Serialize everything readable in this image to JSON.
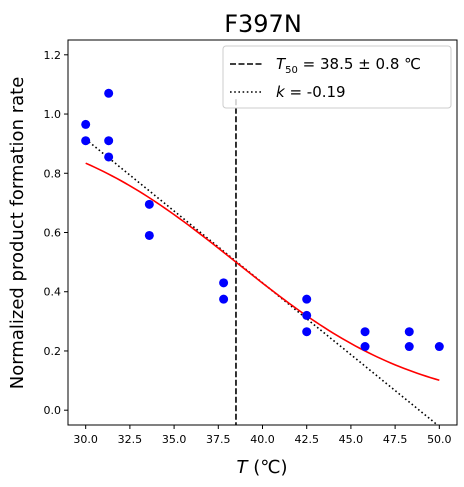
{
  "chart_data": {
    "type": "scatter",
    "title": "F397N",
    "xlabel_main": "T",
    "xlabel_unit": " (℃)",
    "ylabel": "Normalized product formation rate",
    "xlim": [
      29.0,
      51.0
    ],
    "ylim": [
      -0.05,
      1.25
    ],
    "xticks": [
      "30.0",
      "32.5",
      "35.0",
      "37.5",
      "40.0",
      "42.5",
      "45.0",
      "47.5",
      "50.0"
    ],
    "yticks": [
      "0.0",
      "0.2",
      "0.4",
      "0.6",
      "0.8",
      "1.0",
      "1.2"
    ],
    "points": {
      "x": [
        30.0,
        30.0,
        31.3,
        31.3,
        31.3,
        33.6,
        33.6,
        37.8,
        37.8,
        42.5,
        42.5,
        42.5,
        45.8,
        45.8,
        48.3,
        48.3,
        50.0
      ],
      "y": [
        0.965,
        0.91,
        1.07,
        0.91,
        0.855,
        0.695,
        0.59,
        0.43,
        0.375,
        0.375,
        0.32,
        0.265,
        0.265,
        0.215,
        0.265,
        0.215,
        0.215
      ],
      "color": "#0000ff"
    },
    "fit_curve": {
      "color": "#ff0000",
      "T50": 38.5,
      "k": 0.19,
      "x_range": [
        30.0,
        50.0
      ]
    },
    "t50_line": {
      "x": 38.5,
      "y_top": 1.05,
      "style": "dashed",
      "label_value": " = 38.5 ± 0.8 ℃"
    },
    "slope_line": {
      "x": [
        30.0,
        50.0
      ],
      "y": [
        0.915,
        -0.055
      ],
      "style": "dotted",
      "label_value": " = -0.19"
    },
    "legend": {
      "placement": "top-right",
      "t50_symbol": "T",
      "t50_sub": "50",
      "k_symbol": "k"
    }
  }
}
